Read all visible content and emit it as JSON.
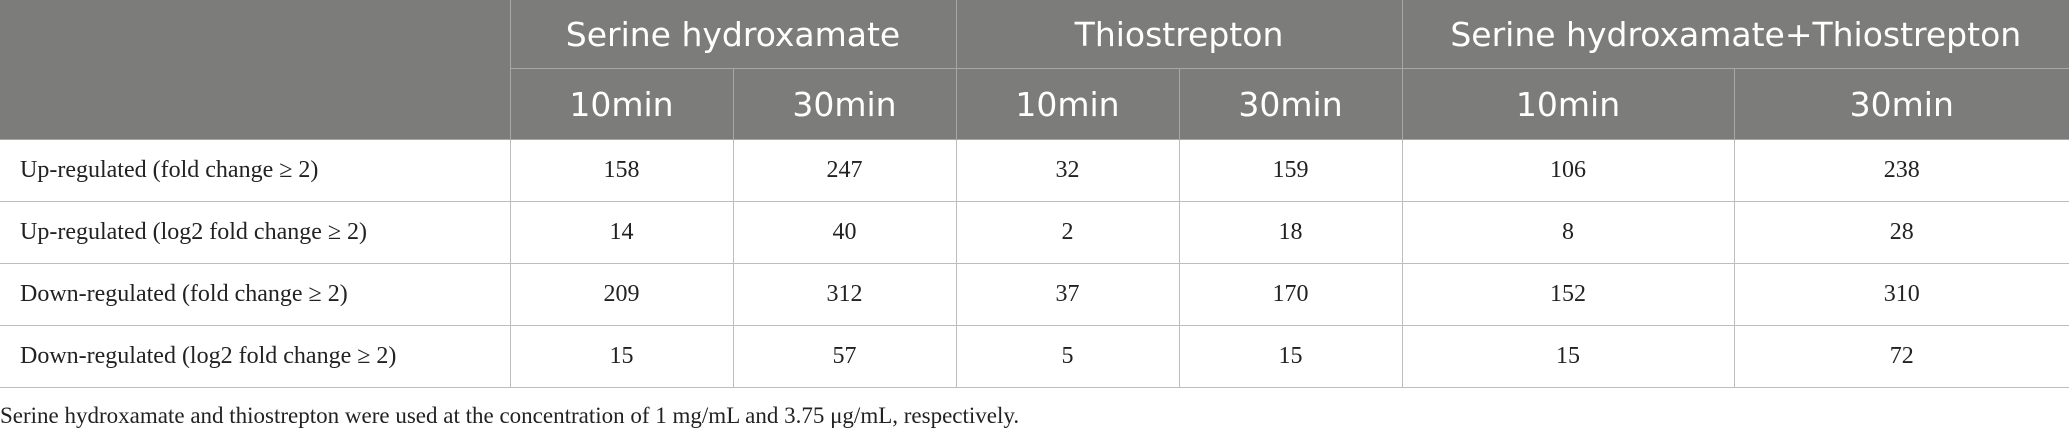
{
  "table": {
    "corner_label": "",
    "groups": [
      "Serine hydroxamate",
      "Thiostrepton",
      "Serine hydroxamate+Thiostrepton"
    ],
    "subheaders": [
      "10min",
      "30min",
      "10min",
      "30min",
      "10min",
      "30min"
    ],
    "rows": [
      {
        "label": "Up-regulated (fold change ≥ 2)",
        "values": [
          "158",
          "247",
          "32",
          "159",
          "106",
          "238"
        ]
      },
      {
        "label": "Up-regulated (log2 fold change ≥ 2)",
        "values": [
          "14",
          "40",
          "2",
          "18",
          "8",
          "28"
        ]
      },
      {
        "label": "Down-regulated (fold change ≥ 2)",
        "values": [
          "209",
          "312",
          "37",
          "170",
          "152",
          "310"
        ]
      },
      {
        "label": "Down-regulated (log2 fold change ≥ 2)",
        "values": [
          "15",
          "57",
          "5",
          "15",
          "15",
          "72"
        ]
      }
    ]
  },
  "footnote": "Serine hydroxamate and thiostrepton were used at the concentration of 1 mg/mL and 3.75 μg/mL, respectively.",
  "colors": {
    "header_bg": "#7c7d7b",
    "header_text": "#ffffff",
    "grid": "#bdbdbd",
    "body_text": "#222222"
  }
}
